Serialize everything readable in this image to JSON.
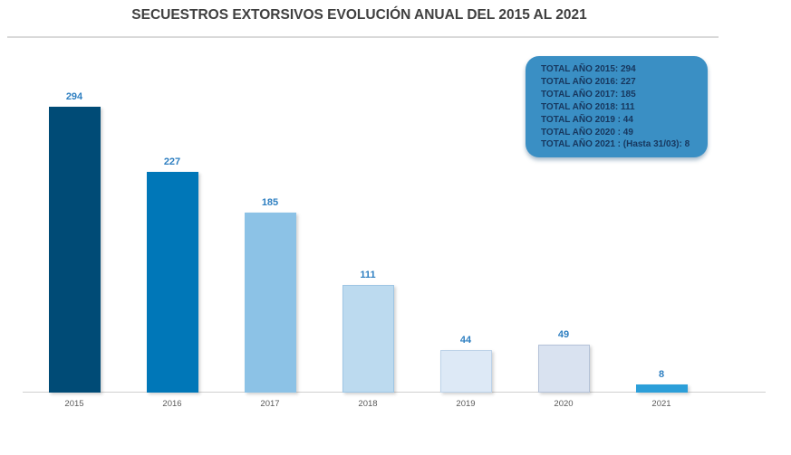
{
  "chart_data": {
    "type": "bar",
    "title": "SECUESTROS EXTORSIVOS EVOLUCIÓN ANUAL DEL 2015 AL 2021",
    "title_color": "#3f3f3f",
    "categories": [
      "2015",
      "2016",
      "2017",
      "2018",
      "2019",
      "2020",
      "2021"
    ],
    "values": [
      294,
      227,
      185,
      111,
      44,
      49,
      8
    ],
    "bar_colors": [
      "#004b76",
      "#0077b8",
      "#8cc2e6",
      "#bcdaef",
      "#dde9f6",
      "#d9e2f0",
      "#2c9fd9"
    ],
    "bar_borders": [
      "none",
      "none",
      "none",
      "#9fc6e4",
      "#bcd2e8",
      "#b4c2d8",
      "none"
    ],
    "value_label_color": "#2e7fc1",
    "axis_label_color": "#595959",
    "xlabel": "",
    "ylabel": "",
    "ylim": [
      0,
      310
    ],
    "grid": false,
    "annotation_box": {
      "position": "top-right",
      "background": "#3a8fc4",
      "text_color": "#17375e",
      "lines": [
        "TOTAL AÑO 2015: 294",
        "TOTAL AÑO 2016: 227",
        "TOTAL AÑO 2017: 185",
        "TOTAL AÑO 2018: 111",
        "TOTAL AÑO 2019 : 44",
        "TOTAL AÑO 2020 : 49",
        "TOTAL AÑO 2021 : (Hasta 31/03): 8"
      ]
    }
  }
}
